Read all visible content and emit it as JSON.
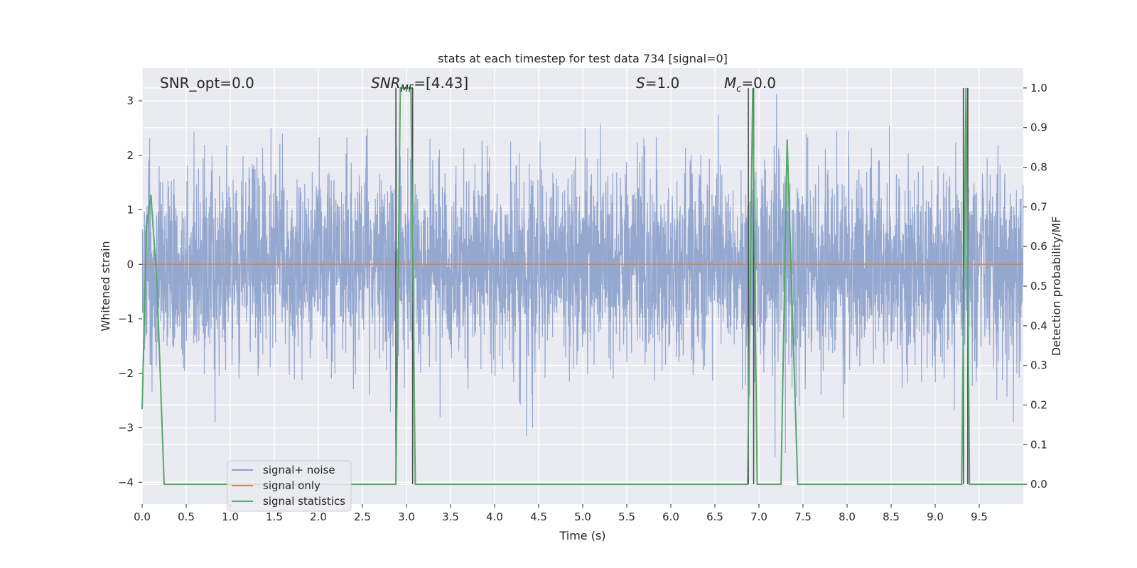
{
  "chart_data": {
    "type": "line",
    "title": "stats at each timestep for test data 734 [signal=0]",
    "xlabel": "Time (s)",
    "ylabel": "Whitened strain",
    "y2label": "Detection probability/MF",
    "xlim": [
      0,
      10
    ],
    "ylim": [
      -4.4,
      3.6
    ],
    "y2lim": [
      -0.05,
      1.05
    ],
    "xticks": [
      "0.0",
      "0.5",
      "1.0",
      "1.5",
      "2.0",
      "2.5",
      "3.0",
      "3.5",
      "4.0",
      "4.5",
      "5.0",
      "5.5",
      "6.0",
      "6.5",
      "7.0",
      "7.5",
      "8.0",
      "8.5",
      "9.0",
      "9.5"
    ],
    "yticks": [
      "3",
      "2",
      "1",
      "0",
      "−1",
      "−2",
      "−3",
      "−4"
    ],
    "y2ticks": [
      "1.0",
      "0.9",
      "0.8",
      "0.7",
      "0.6",
      "0.5",
      "0.4",
      "0.3",
      "0.2",
      "0.1",
      "0.0"
    ],
    "grid": true,
    "legend_position": "lower-left",
    "annotations": {
      "snr_opt": "SNR_opt=0.0",
      "snr_mf_prefix": "SNR",
      "snr_mf_sub": "MF",
      "snr_mf_value": "=[4.43]",
      "s_symbol": "S",
      "s_value": "=1.0",
      "mc_symbol": "M",
      "mc_sub": "c",
      "mc_value": "=0.0"
    },
    "series": [
      {
        "name": "signal+ noise",
        "color": "#8fa3cc",
        "axis": "left",
        "description_type": "noise",
        "sample_rate": 409.6,
        "std": 0.9,
        "range": [
          -4.0,
          3.3
        ]
      },
      {
        "name": "signal only",
        "color": "#dd8452",
        "axis": "left",
        "x": [
          0,
          10
        ],
        "y": [
          0,
          0
        ]
      },
      {
        "name": "signal statistics",
        "color": "#55a868",
        "axis": "right",
        "x": [
          0,
          0.05,
          0.1,
          0.17,
          0.25,
          2.88,
          2.93,
          3.05,
          3.1,
          6.87,
          6.93,
          6.98,
          7.25,
          7.32,
          7.44,
          9.3,
          9.35,
          9.39,
          9.44,
          10.0
        ],
        "y": [
          0.19,
          0.65,
          0.73,
          0.5,
          0.0,
          0.0,
          1.0,
          1.0,
          0.0,
          0.0,
          1.0,
          0.0,
          0.0,
          0.87,
          0.0,
          0.0,
          1.0,
          0.0,
          0.0,
          0.0
        ]
      }
    ],
    "markers": {
      "color": "#4c4c4c",
      "x": [
        2.88,
        3.07,
        6.88,
        6.94,
        9.32,
        9.37
      ]
    }
  }
}
